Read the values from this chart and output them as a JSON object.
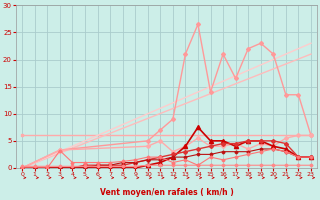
{
  "background_color": "#cceee8",
  "grid_color": "#aacccc",
  "xlabel": "Vent moyen/en rafales ( km/h )",
  "xlabel_color": "#cc0000",
  "tick_color": "#cc0000",
  "xlim": [
    -0.5,
    23.5
  ],
  "ylim": [
    0,
    30
  ],
  "yticks": [
    0,
    5,
    10,
    15,
    20,
    25,
    30
  ],
  "xticks": [
    0,
    1,
    2,
    3,
    4,
    5,
    6,
    7,
    8,
    9,
    10,
    11,
    12,
    13,
    14,
    15,
    16,
    17,
    18,
    19,
    20,
    21,
    22,
    23
  ],
  "series": [
    {
      "x": [
        0,
        23
      ],
      "y": [
        6,
        6
      ],
      "color": "#ffaaaa",
      "lw": 1.0,
      "marker": "s",
      "ms": 1.5
    },
    {
      "x": [
        0,
        23
      ],
      "y": [
        0,
        21
      ],
      "color": "#ffbbbb",
      "lw": 1.0,
      "marker": null,
      "ms": 0
    },
    {
      "x": [
        0,
        23
      ],
      "y": [
        0,
        23
      ],
      "color": "#ffcccc",
      "lw": 1.0,
      "marker": null,
      "ms": 0
    },
    {
      "x": [
        0,
        3,
        10,
        11,
        12,
        13,
        14,
        15,
        16,
        17,
        18,
        19,
        20,
        21,
        22,
        23
      ],
      "y": [
        0,
        3.3,
        5,
        7,
        9,
        21,
        26.5,
        14,
        21,
        16.5,
        22,
        23,
        21,
        13.5,
        13.5,
        6
      ],
      "color": "#ff9999",
      "lw": 1.0,
      "marker": "D",
      "ms": 2.0
    },
    {
      "x": [
        0,
        3,
        10,
        11,
        12,
        13,
        14,
        15,
        16,
        17,
        18,
        19,
        20,
        21,
        22,
        23
      ],
      "y": [
        0,
        3.3,
        4,
        5,
        3,
        4,
        5.5,
        4,
        4,
        4.5,
        3.5,
        4.5,
        4,
        5.5,
        6,
        6
      ],
      "color": "#ffaaaa",
      "lw": 1.0,
      "marker": "D",
      "ms": 2.0
    },
    {
      "x": [
        0,
        1,
        2,
        3,
        4,
        5,
        6,
        7,
        8,
        9,
        10,
        11,
        12,
        13,
        14,
        15,
        16,
        17,
        18,
        19,
        20,
        21,
        22,
        23
      ],
      "y": [
        0,
        0,
        0,
        0,
        0,
        0,
        0,
        0,
        0,
        0,
        0.5,
        1,
        2,
        4,
        7.5,
        5,
        5,
        4,
        5,
        5,
        4,
        3.5,
        2,
        2
      ],
      "color": "#cc0000",
      "lw": 1.2,
      "marker": "^",
      "ms": 3.0
    },
    {
      "x": [
        0,
        1,
        2,
        3,
        4,
        5,
        6,
        7,
        8,
        9,
        10,
        11,
        12,
        13,
        14,
        15,
        16,
        17,
        18,
        19,
        20,
        21,
        22,
        23
      ],
      "y": [
        0,
        0,
        0,
        0,
        0,
        0.5,
        0.5,
        0.5,
        0.5,
        1,
        1.5,
        2,
        2.5,
        3,
        3.5,
        4,
        4.5,
        4.5,
        5,
        5,
        5,
        4.5,
        2,
        2
      ],
      "color": "#dd3333",
      "lw": 1.0,
      "marker": "D",
      "ms": 2.0
    },
    {
      "x": [
        0,
        1,
        2,
        3,
        4,
        5,
        6,
        7,
        8,
        9,
        10,
        11,
        12,
        13,
        14,
        15,
        16,
        17,
        18,
        19,
        20,
        21,
        22,
        23
      ],
      "y": [
        0,
        0,
        0,
        0,
        0,
        0,
        0.5,
        0.5,
        1,
        1,
        1.5,
        1.5,
        2,
        2,
        2.5,
        2.5,
        3,
        3,
        3,
        3.5,
        3.5,
        3,
        2,
        2
      ],
      "color": "#bb1111",
      "lw": 0.8,
      "marker": "D",
      "ms": 1.5
    },
    {
      "x": [
        0,
        1,
        2,
        3,
        4,
        5,
        6,
        7,
        8,
        9,
        10,
        11,
        12,
        13,
        14,
        15,
        16,
        17,
        18,
        19,
        20,
        21,
        22,
        23
      ],
      "y": [
        0.3,
        0.3,
        0.3,
        0.3,
        0.3,
        0.3,
        0.3,
        0.3,
        0.3,
        0.3,
        0.5,
        0.5,
        0.5,
        0.5,
        0.5,
        0.5,
        0.5,
        0.5,
        0.5,
        0.5,
        0.5,
        0.5,
        0.5,
        0.5
      ],
      "color": "#ff8888",
      "lw": 0.8,
      "marker": "D",
      "ms": 1.5
    },
    {
      "x": [
        0,
        2,
        3,
        4,
        5,
        6,
        7,
        8,
        9,
        10,
        11,
        12,
        13,
        14,
        15,
        16,
        17,
        18,
        19,
        20,
        21,
        22,
        23
      ],
      "y": [
        0,
        0,
        3.2,
        1,
        1,
        1,
        1,
        1.2,
        1.5,
        2,
        2,
        1,
        1.5,
        0.5,
        2,
        1.5,
        2,
        2.5,
        3,
        3.5,
        3,
        2,
        2
      ],
      "color": "#ff7777",
      "lw": 0.8,
      "marker": "D",
      "ms": 1.5
    }
  ]
}
